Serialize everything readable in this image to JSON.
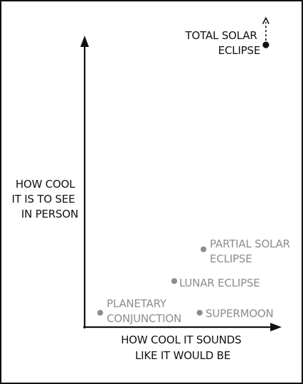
{
  "colors": {
    "ink": "#111111",
    "grey_point": "#8d8d8d",
    "grey_text": "#8d8d8d",
    "background": "#ffffff"
  },
  "chart_data": {
    "type": "scatter",
    "title": "",
    "xlabel": [
      "HOW COOL IT SOUNDS",
      "LIKE IT WOULD BE"
    ],
    "ylabel": [
      "HOW COOL",
      "IT IS TO SEE",
      "IN PERSON"
    ],
    "xlim": [
      0,
      1
    ],
    "ylim": [
      0,
      1
    ],
    "grid": false,
    "points": [
      {
        "label": [
          "TOTAL SOLAR",
          "ECLIPSE"
        ],
        "x": 0.93,
        "y": 0.98,
        "color": "#111111",
        "arrow_up": true
      },
      {
        "label": [
          "PARTIAL SOLAR",
          "ECLIPSE"
        ],
        "x": 0.61,
        "y": 0.27,
        "color": "#8d8d8d",
        "arrow_up": false
      },
      {
        "label": [
          "LUNAR ECLIPSE"
        ],
        "x": 0.46,
        "y": 0.16,
        "color": "#8d8d8d",
        "arrow_up": false
      },
      {
        "label": [
          "PLANETARY",
          "CONJUNCTION"
        ],
        "x": 0.08,
        "y": 0.05,
        "color": "#8d8d8d",
        "arrow_up": false
      },
      {
        "label": [
          "SUPERMOON"
        ],
        "x": 0.59,
        "y": 0.05,
        "color": "#8d8d8d",
        "arrow_up": false
      }
    ]
  }
}
